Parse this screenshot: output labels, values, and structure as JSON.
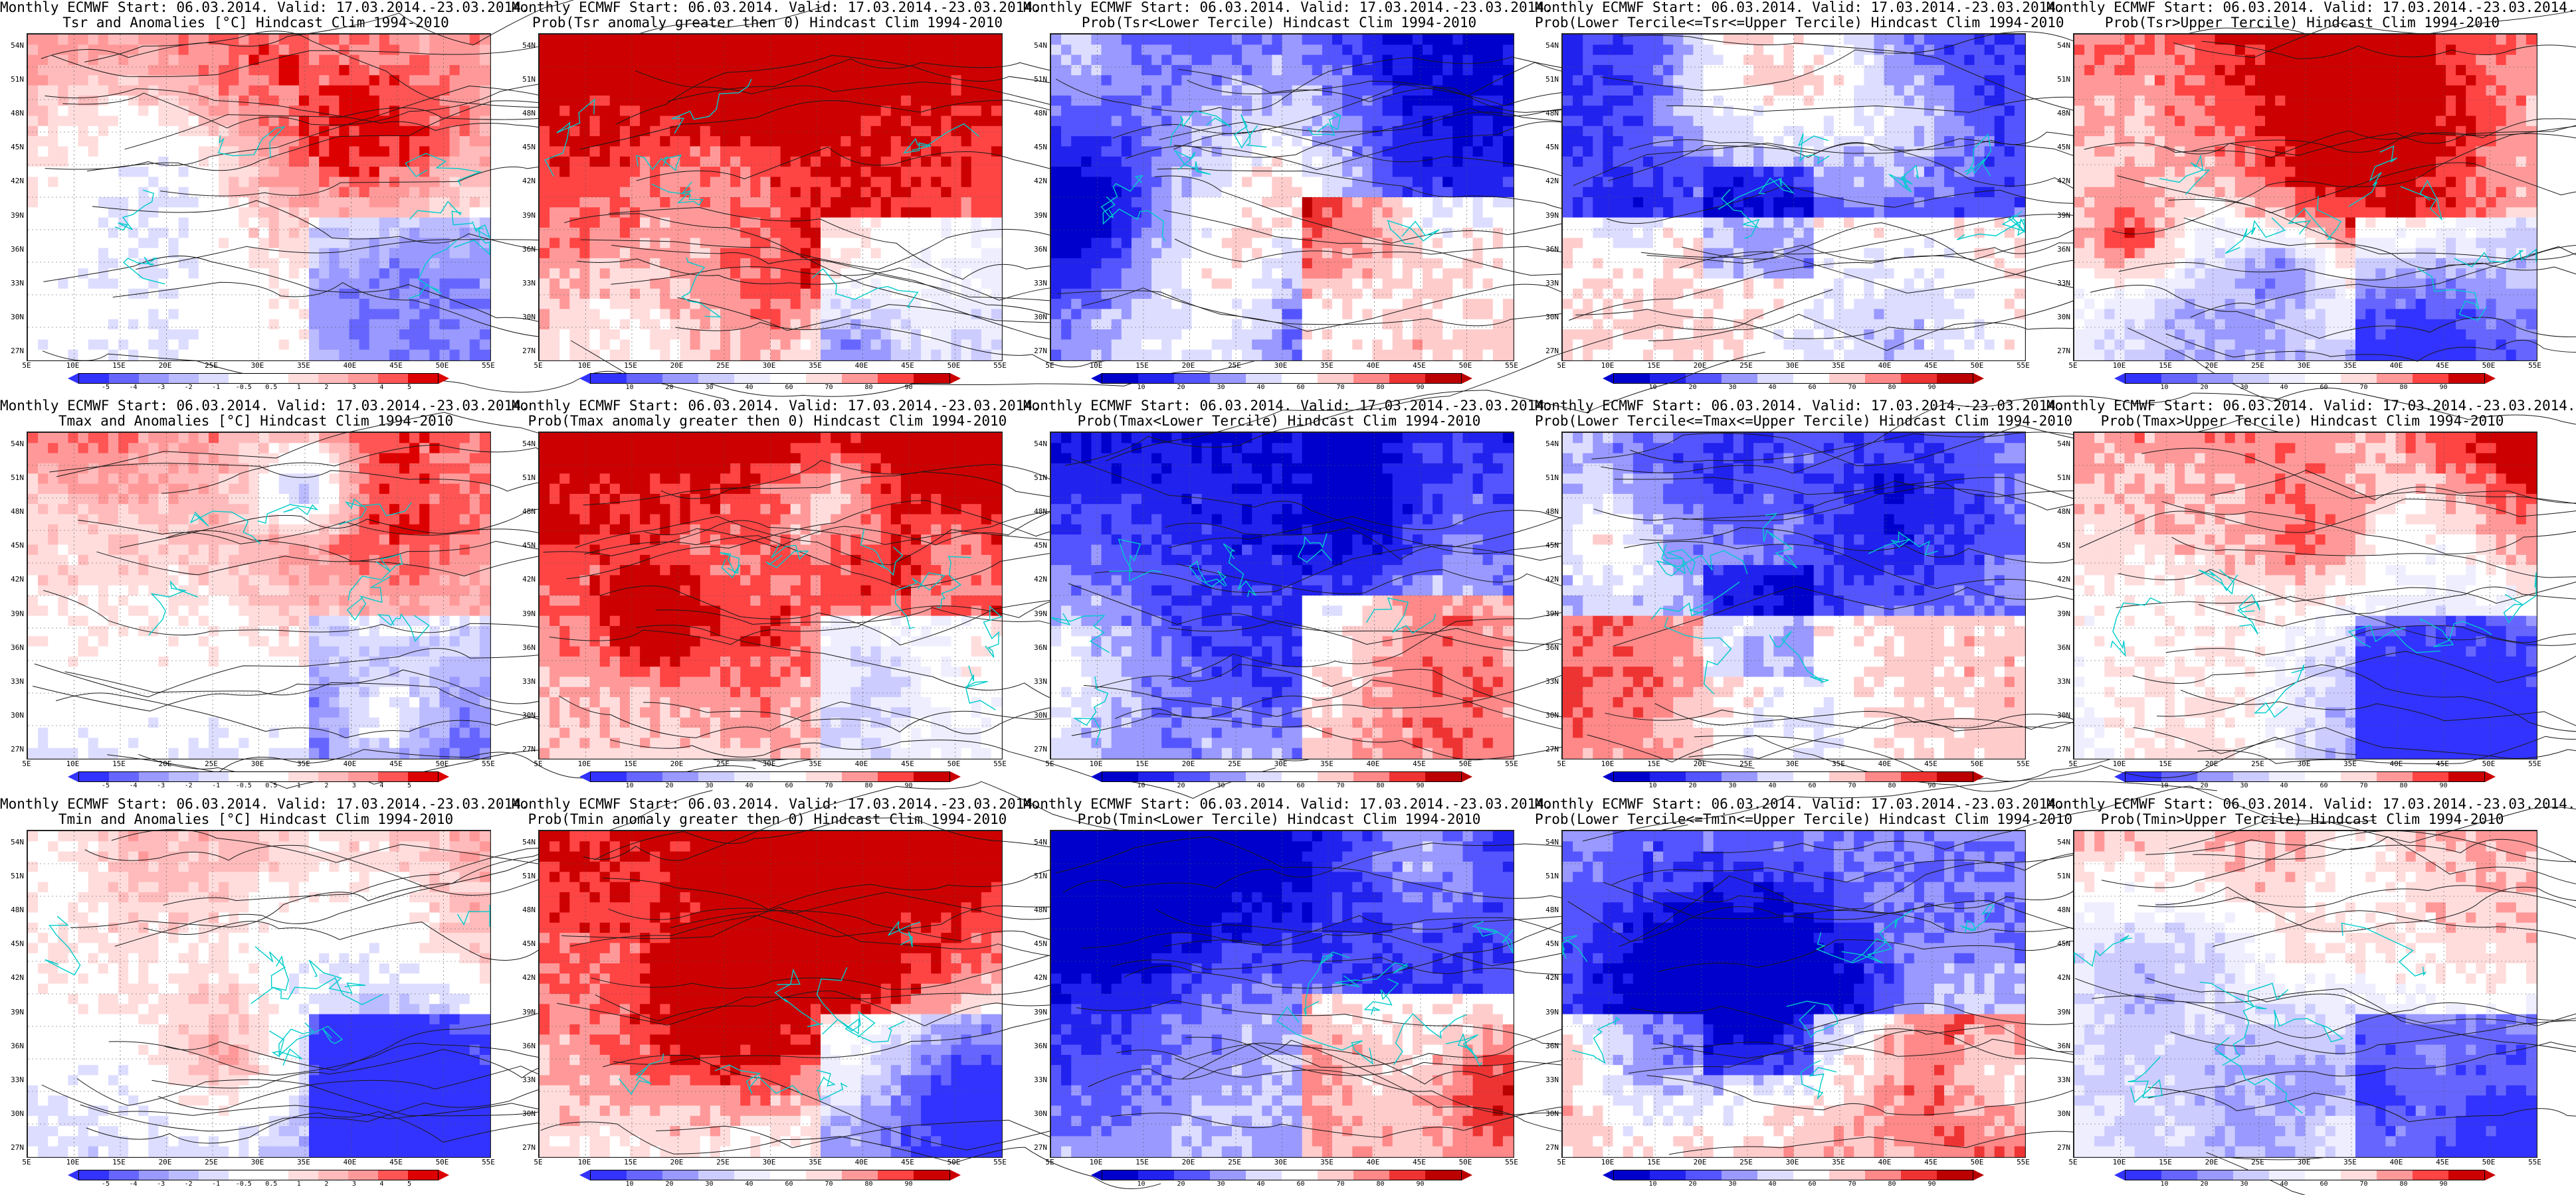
{
  "palettes": {
    "anomaly": [
      "#3333ff",
      "#6666ff",
      "#9999ff",
      "#bbbbff",
      "#ddddff",
      "#ffffff",
      "#ffffff",
      "#ffdddd",
      "#ffbbbb",
      "#ff9999",
      "#ff5555",
      "#dd0000"
    ],
    "prob_warm": [
      "#3333ff",
      "#6666ff",
      "#9999ff",
      "#ccccff",
      "#eeeeff",
      "#ffffff",
      "#ffdddd",
      "#ff9999",
      "#ff4444",
      "#cc0000"
    ],
    "prob_cold": [
      "#0000cc",
      "#2222ee",
      "#5555ff",
      "#9999ff",
      "#ddddff",
      "#ffffff",
      "#ffcccc",
      "#ff8888",
      "#ee3333",
      "#bb0000"
    ]
  },
  "lat_ticks": [
    "54N",
    "51N",
    "48N",
    "45N",
    "42N",
    "39N",
    "36N",
    "33N",
    "30N",
    "27N"
  ],
  "lon_ticks": [
    "5E",
    "10E",
    "15E",
    "20E",
    "25E",
    "30E",
    "35E",
    "40E",
    "45E",
    "50E",
    "55E"
  ],
  "anomaly_ticks": [
    "-5",
    "-4",
    "-3",
    "-2",
    "-1",
    "-0.5",
    "0.5",
    "1",
    "2",
    "3",
    "4",
    "5"
  ],
  "prob_ticks": [
    "10",
    "20",
    "30",
    "40",
    "60",
    "70",
    "80",
    "90"
  ],
  "panels": [
    {
      "line1": "Monthly ECMWF Start: 06.03.2014. Valid: 17.03.2014.-23.03.2014.",
      "line2": "Tsr and Anomalies [°C] Hindcast Clim 1994-2010",
      "kind": "anomaly",
      "warm": 0.62,
      "colorbar": "anomaly"
    },
    {
      "line1": "Monthly ECMWF Start: 06.03.2014. Valid: 17.03.2014.-23.03.2014.",
      "line2": "Prob(Tsr anomaly greater then 0) Hindcast Clim 1994-2010",
      "kind": "probwarm",
      "warm": 0.85,
      "colorbar": "prob"
    },
    {
      "line1": "Monthly ECMWF Start: 06.03.2014. Valid: 17.03.2014.-23.03.2014.",
      "line2": "Prob(Tsr<Lower Tercile) Hindcast Clim 1994-2010",
      "kind": "probcold",
      "warm": 0.08,
      "colorbar": "prob"
    },
    {
      "line1": "Monthly ECMWF Start: 06.03.2014. Valid: 17.03.2014.-23.03.2014.",
      "line2": "Prob(Lower Tercile<=Tsr<=Upper Tercile) Hindcast Clim 1994-2010",
      "kind": "mid",
      "warm": 0.25,
      "colorbar": "prob"
    },
    {
      "line1": "Monthly ECMWF Start: 06.03.2014. Valid: 17.03.2014.-23.03.2014.",
      "line2": "Prob(Tsr>Upper Tercile) Hindcast Clim 1994-2010",
      "kind": "probwarm",
      "warm": 0.6,
      "colorbar": "prob"
    },
    {
      "line1": "Monthly ECMWF Start: 06.03.2014. Valid: 17.03.2014.-23.03.2014.",
      "line2": "Tmax and Anomalies [°C] Hindcast Clim 1994-2010",
      "kind": "anomaly",
      "warm": 0.6,
      "colorbar": "anomaly"
    },
    {
      "line1": "Monthly ECMWF Start: 06.03.2014. Valid: 17.03.2014.-23.03.2014.",
      "line2": "Prob(Tmax anomaly greater then 0) Hindcast Clim 1994-2010",
      "kind": "probwarm",
      "warm": 0.82,
      "colorbar": "prob"
    },
    {
      "line1": "Monthly ECMWF Start: 06.03.2014. Valid: 17.03.2014.-23.03.2014.",
      "line2": "Prob(Tmax<Lower Tercile) Hindcast Clim 1994-2010",
      "kind": "probcold",
      "warm": 0.08,
      "colorbar": "prob"
    },
    {
      "line1": "Monthly ECMWF Start: 06.03.2014. Valid: 17.03.2014.-23.03.2014.",
      "line2": "Prob(Lower Tercile<=Tmax<=Upper Tercile) Hindcast Clim 1994-2010",
      "kind": "mid",
      "warm": 0.3,
      "colorbar": "prob"
    },
    {
      "line1": "Monthly ECMWF Start: 06.03.2014. Valid: 17.03.2014.-23.03.2014.",
      "line2": "Prob(Tmax>Upper Tercile) Hindcast Clim 1994-2010",
      "kind": "probwarm",
      "warm": 0.58,
      "colorbar": "prob"
    },
    {
      "line1": "Monthly ECMWF Start: 06.03.2014. Valid: 17.03.2014.-23.03.2014.",
      "line2": "Tmin and Anomalies [°C] Hindcast Clim 1994-2010",
      "kind": "anomaly",
      "warm": 0.55,
      "colorbar": "anomaly"
    },
    {
      "line1": "Monthly ECMWF Start: 06.03.2014. Valid: 17.03.2014.-23.03.2014.",
      "line2": "Prob(Tmin anomaly greater then 0) Hindcast Clim 1994-2010",
      "kind": "probwarm",
      "warm": 0.75,
      "colorbar": "prob"
    },
    {
      "line1": "Monthly ECMWF Start: 06.03.2014. Valid: 17.03.2014.-23.03.2014.",
      "line2": "Prob(Tmin<Lower Tercile) Hindcast Clim 1994-2010",
      "kind": "probcold",
      "warm": 0.1,
      "colorbar": "prob"
    },
    {
      "line1": "Monthly ECMWF Start: 06.03.2014. Valid: 17.03.2014.-23.03.2014.",
      "line2": "Prob(Lower Tercile<=Tmin<=Upper Tercile) Hindcast Clim 1994-2010",
      "kind": "mid",
      "warm": 0.3,
      "colorbar": "prob"
    },
    {
      "line1": "Monthly ECMWF Start: 06.03.2014. Valid: 17.03.2014.-23.03.2014.",
      "line2": "Prob(Tmin>Upper Tercile) Hindcast Clim 1994-2010",
      "kind": "probwarm",
      "warm": 0.55,
      "colorbar": "prob"
    }
  ]
}
